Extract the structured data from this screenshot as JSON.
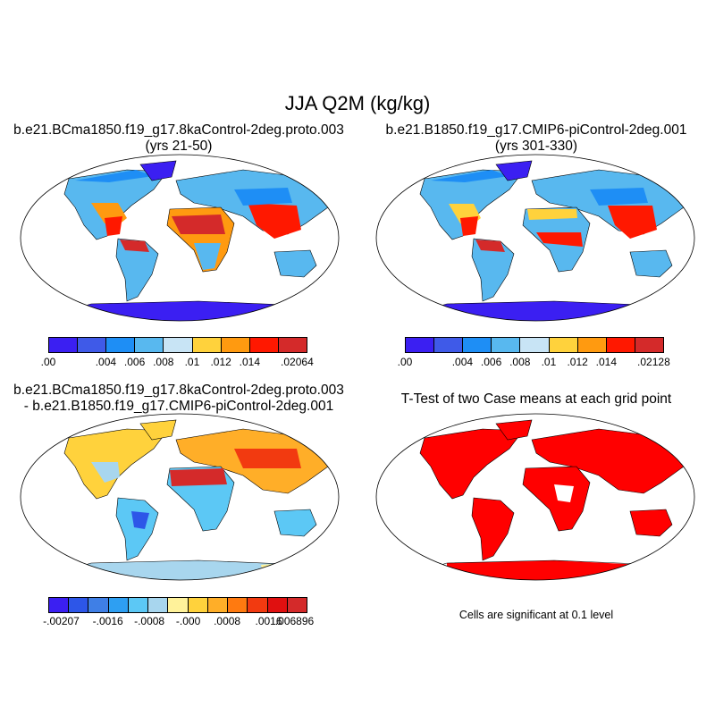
{
  "figure_title": "JJA Q2M (kg/kg)",
  "panels": {
    "tl": {
      "line1": "b.e21.BCma1850.f19_g17.8kaControl-2deg.proto.003",
      "line2": "(yrs 21-50)"
    },
    "tr": {
      "line1": "b.e21.B1850.f19_g17.CMIP6-piControl-2deg.001",
      "line2": "(yrs 301-330)"
    },
    "bl": {
      "line1": "b.e21.BCma1850.f19_g17.8kaControl-2deg.proto.003",
      "line2": "- b.e21.B1850.f19_g17.CMIP6-piControl-2deg.001"
    },
    "br": {
      "line1": "T-Test of two Case means at each grid point",
      "note": "Cells are significant at 0.1 level"
    }
  },
  "colorbars": {
    "abs_colors": [
      "#3b1ff2",
      "#3f5ae8",
      "#1e8ef5",
      "#58b8ef",
      "#c8e4f5",
      "#ffd23c",
      "#ff9a10",
      "#ff1800",
      "#d42a2a"
    ],
    "diff_colors": [
      "#3b1ff2",
      "#2d56e8",
      "#3f7fe6",
      "#2e9ff2",
      "#5cc8f5",
      "#a8d6ee",
      "#fff29a",
      "#ffd23c",
      "#ffae28",
      "#ff7a10",
      "#f23a10",
      "#e01010",
      "#d42a2a"
    ],
    "tl_labels": [
      ".00",
      ".004",
      ".006",
      ".008",
      ".01",
      ".012",
      ".014",
      ".02064"
    ],
    "tr_labels": [
      ".00",
      ".004",
      ".006",
      ".008",
      ".01",
      ".012",
      ".014",
      ".02128"
    ],
    "bl_labels": [
      "-.00207",
      "-.0016",
      "-.0008",
      "-.000",
      ".0008",
      ".0016",
      ".006896"
    ]
  },
  "colors": {
    "significant": "#ff0000",
    "coast": "#000000",
    "antarctic": "#3b1ff2",
    "antarctic_diff": "#a8d6ee"
  }
}
